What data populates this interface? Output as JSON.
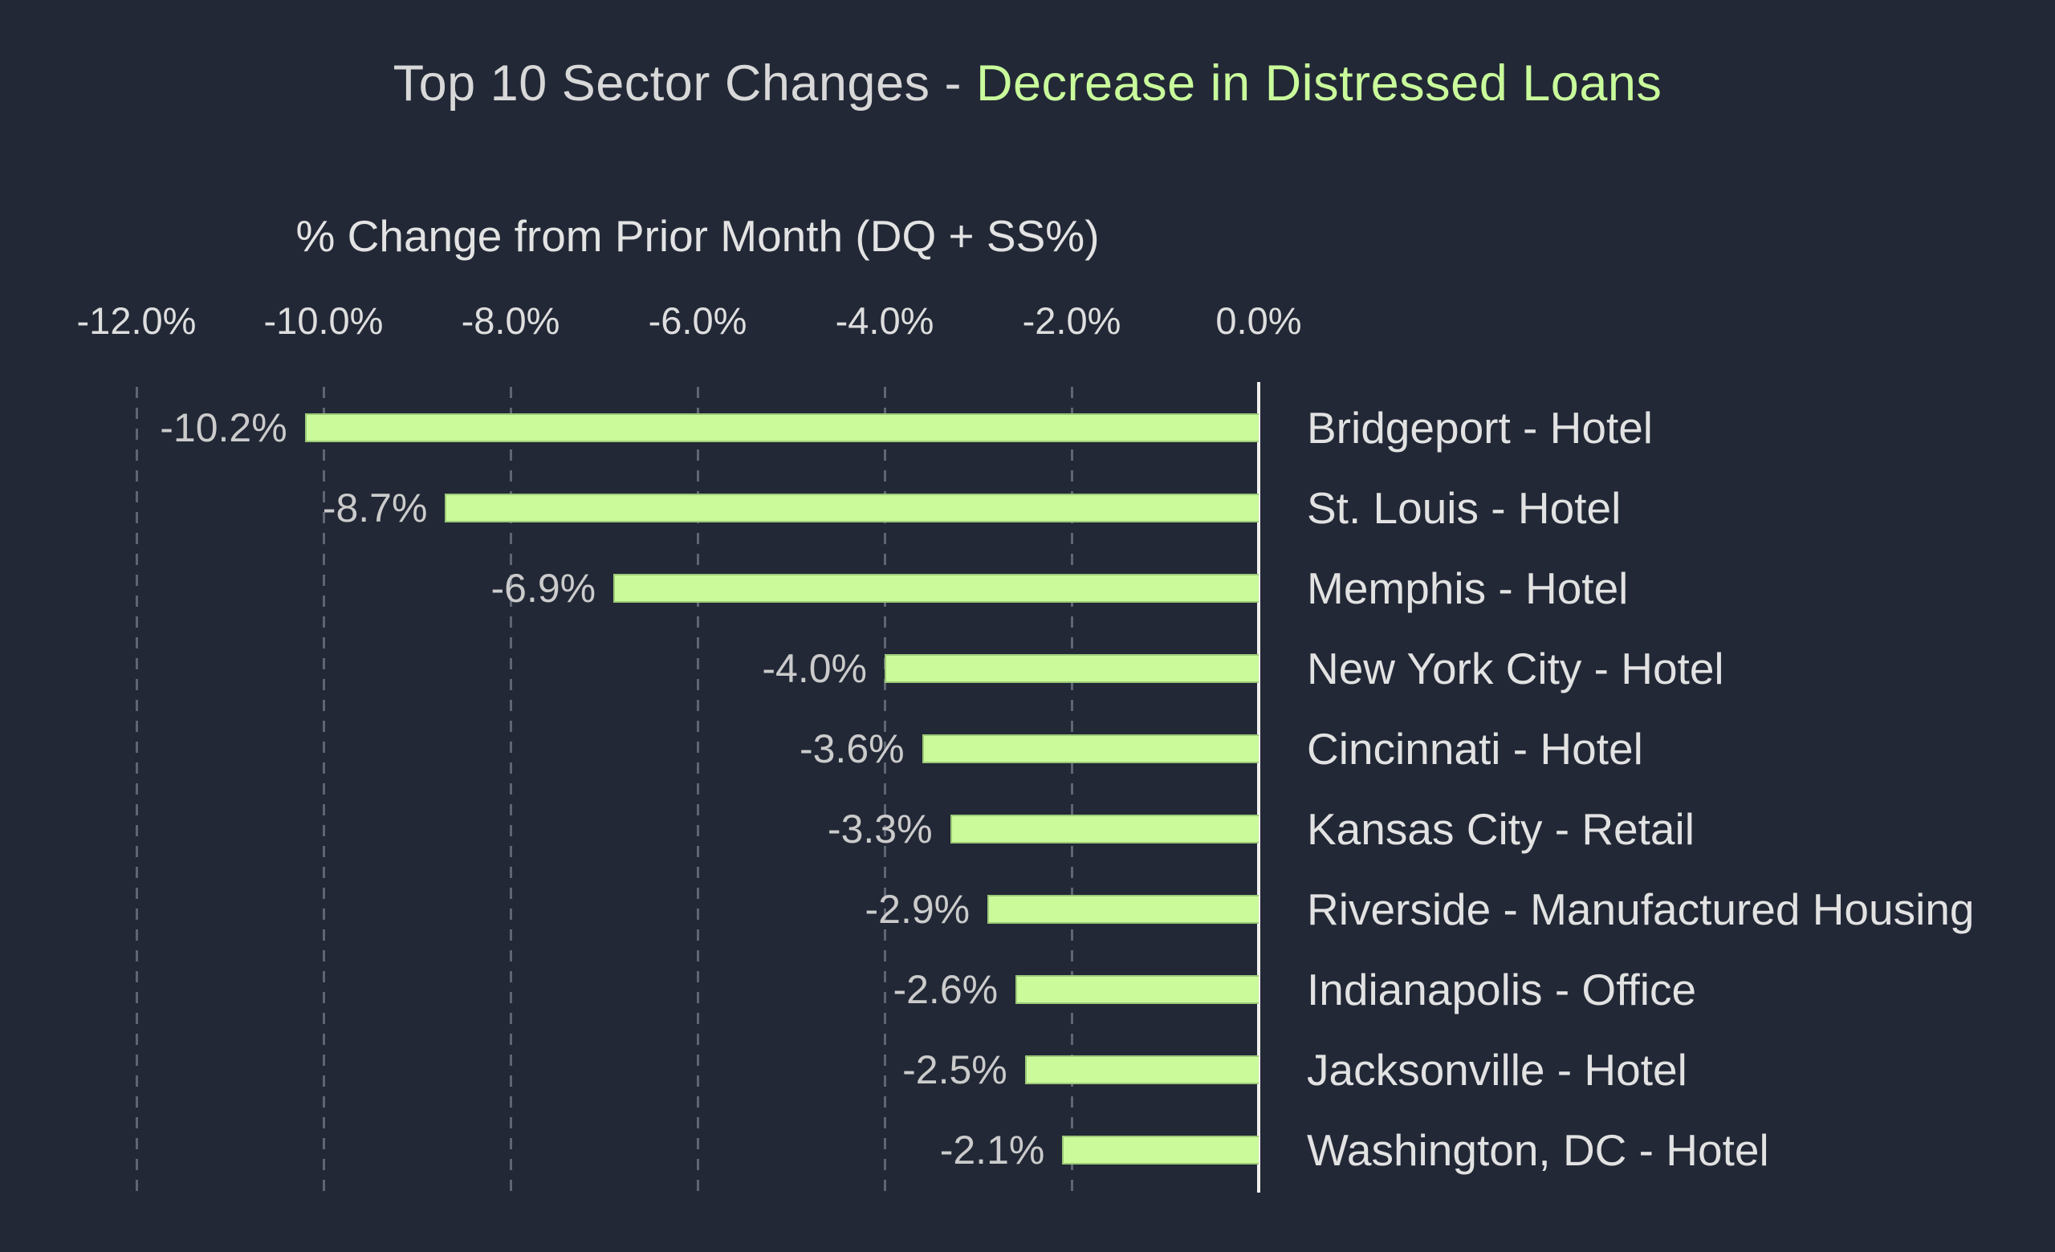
{
  "title": {
    "prefix": "Top 10 Sector Changes - ",
    "highlight": "Decrease in Distressed Loans"
  },
  "axis": {
    "label": "% Change from Prior Month (DQ + SS%)",
    "ticks": [
      {
        "label": "-12.0%",
        "value": -12
      },
      {
        "label": "-10.0%",
        "value": -10
      },
      {
        "label": "-8.0%",
        "value": -8
      },
      {
        "label": "-6.0%",
        "value": -6
      },
      {
        "label": "-4.0%",
        "value": -4
      },
      {
        "label": "-2.0%",
        "value": -2
      },
      {
        "label": "0.0%",
        "value": 0
      }
    ]
  },
  "chart_data": {
    "type": "bar",
    "orientation": "horizontal",
    "title": "Top 10 Sector Changes - Decrease in Distressed Loans",
    "xlabel": "% Change from Prior Month (DQ + SS%)",
    "xlim": [
      -12,
      0
    ],
    "grid": "vertical-dashed",
    "legend": "none",
    "categories": [
      "Bridgeport - Hotel",
      "St. Louis - Hotel",
      "Memphis - Hotel",
      "New York City - Hotel",
      "Cincinnati - Hotel",
      "Kansas City - Retail",
      "Riverside - Manufactured Housing",
      "Indianapolis - Office",
      "Jacksonville - Hotel",
      "Washington, DC - Hotel"
    ],
    "values": [
      -10.2,
      -8.7,
      -6.9,
      -4.0,
      -3.6,
      -3.3,
      -2.9,
      -2.6,
      -2.5,
      -2.1
    ],
    "value_labels": [
      "-10.2%",
      "-8.7%",
      "-6.9%",
      "-4.0%",
      "-3.6%",
      "-3.3%",
      "-2.9%",
      "-2.6%",
      "-2.5%",
      "-2.1%"
    ]
  },
  "colors": {
    "background": "#222836",
    "bar_fill": "#CBFA9B",
    "bar_border": "#9DC978",
    "title_gray": "#D8D8D8",
    "accent_green": "#C9FB9B",
    "gridline": "#5E6673",
    "zero_line": "#F1F0EE",
    "tick_text": "#DEDEDE",
    "value_text": "#CBCBCB",
    "category_text": "#E2E2E2"
  }
}
